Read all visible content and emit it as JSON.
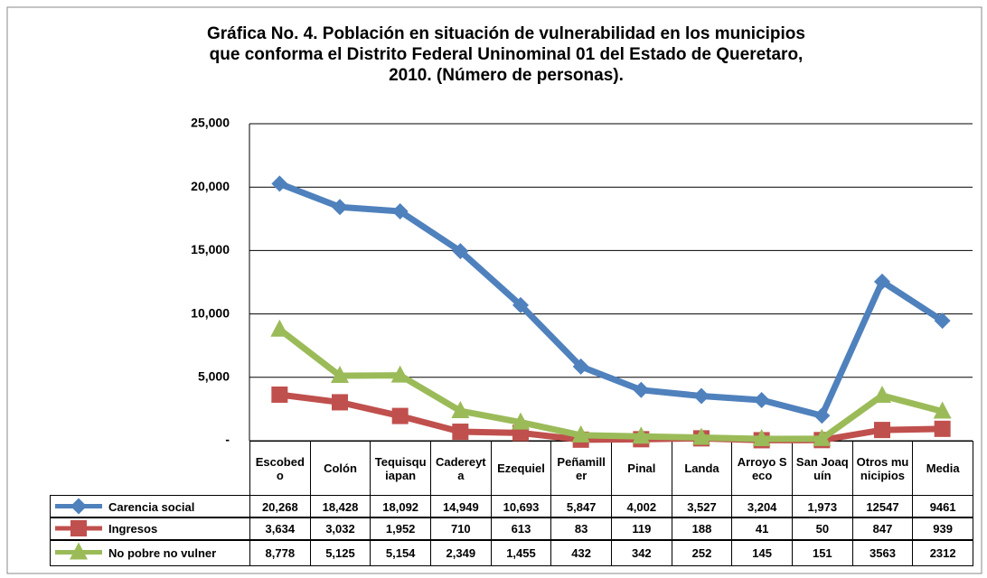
{
  "chart_data": {
    "type": "line",
    "title": [
      "Gráfica No. 4. Población en situación de vulnerabilidad en los municipios",
      "que conforma el  Distrito Federal Uninominal 01 del Estado de Queretaro,",
      "2010. (Número de personas)."
    ],
    "categories": [
      "Escobedo",
      "Colón",
      "Tequisquiapan",
      "Cadereyta",
      "Ezequiel",
      "Peñamiller",
      "Pinal",
      "Landa",
      "Arroyo Seco",
      "San Joaquín",
      "Otros municipios",
      "Media"
    ],
    "series": [
      {
        "name": "Carencia social",
        "color": "#4f81bd",
        "marker": "diamond",
        "values": [
          20268,
          18428,
          18092,
          14949,
          10693,
          5847,
          4002,
          3527,
          3204,
          1973,
          12547,
          9461
        ],
        "value_labels": [
          "20,268",
          "18,428",
          "18,092",
          "14,949",
          "10,693",
          "5,847",
          "4,002",
          "3,527",
          "3,204",
          "1,973",
          "12547",
          "9461"
        ]
      },
      {
        "name": "Ingresos",
        "color": "#c0504d",
        "marker": "square",
        "values": [
          3634,
          3032,
          1952,
          710,
          613,
          83,
          119,
          188,
          41,
          50,
          847,
          939
        ],
        "value_labels": [
          "3,634",
          "3,032",
          "1,952",
          "710",
          "613",
          "83",
          "119",
          "188",
          "41",
          "50",
          "847",
          "939"
        ]
      },
      {
        "name": "No pobre  no vulner",
        "color": "#9bbb59",
        "marker": "triangle",
        "values": [
          8778,
          5125,
          5154,
          2349,
          1455,
          432,
          342,
          252,
          145,
          151,
          3563,
          2312
        ],
        "value_labels": [
          "8,778",
          "5,125",
          "5,154",
          "2,349",
          "1,455",
          "432",
          "342",
          "252",
          "145",
          "151",
          "3563",
          "2312"
        ]
      }
    ],
    "ylim": [
      0,
      25000
    ],
    "yticks": [
      {
        "value": 0,
        "label": "-"
      },
      {
        "value": 5000,
        "label": "5,000"
      },
      {
        "value": 10000,
        "label": "10,000"
      },
      {
        "value": 15000,
        "label": "15,000"
      },
      {
        "value": 20000,
        "label": "20,000"
      },
      {
        "value": 25000,
        "label": "25,000"
      }
    ],
    "grid": true
  }
}
